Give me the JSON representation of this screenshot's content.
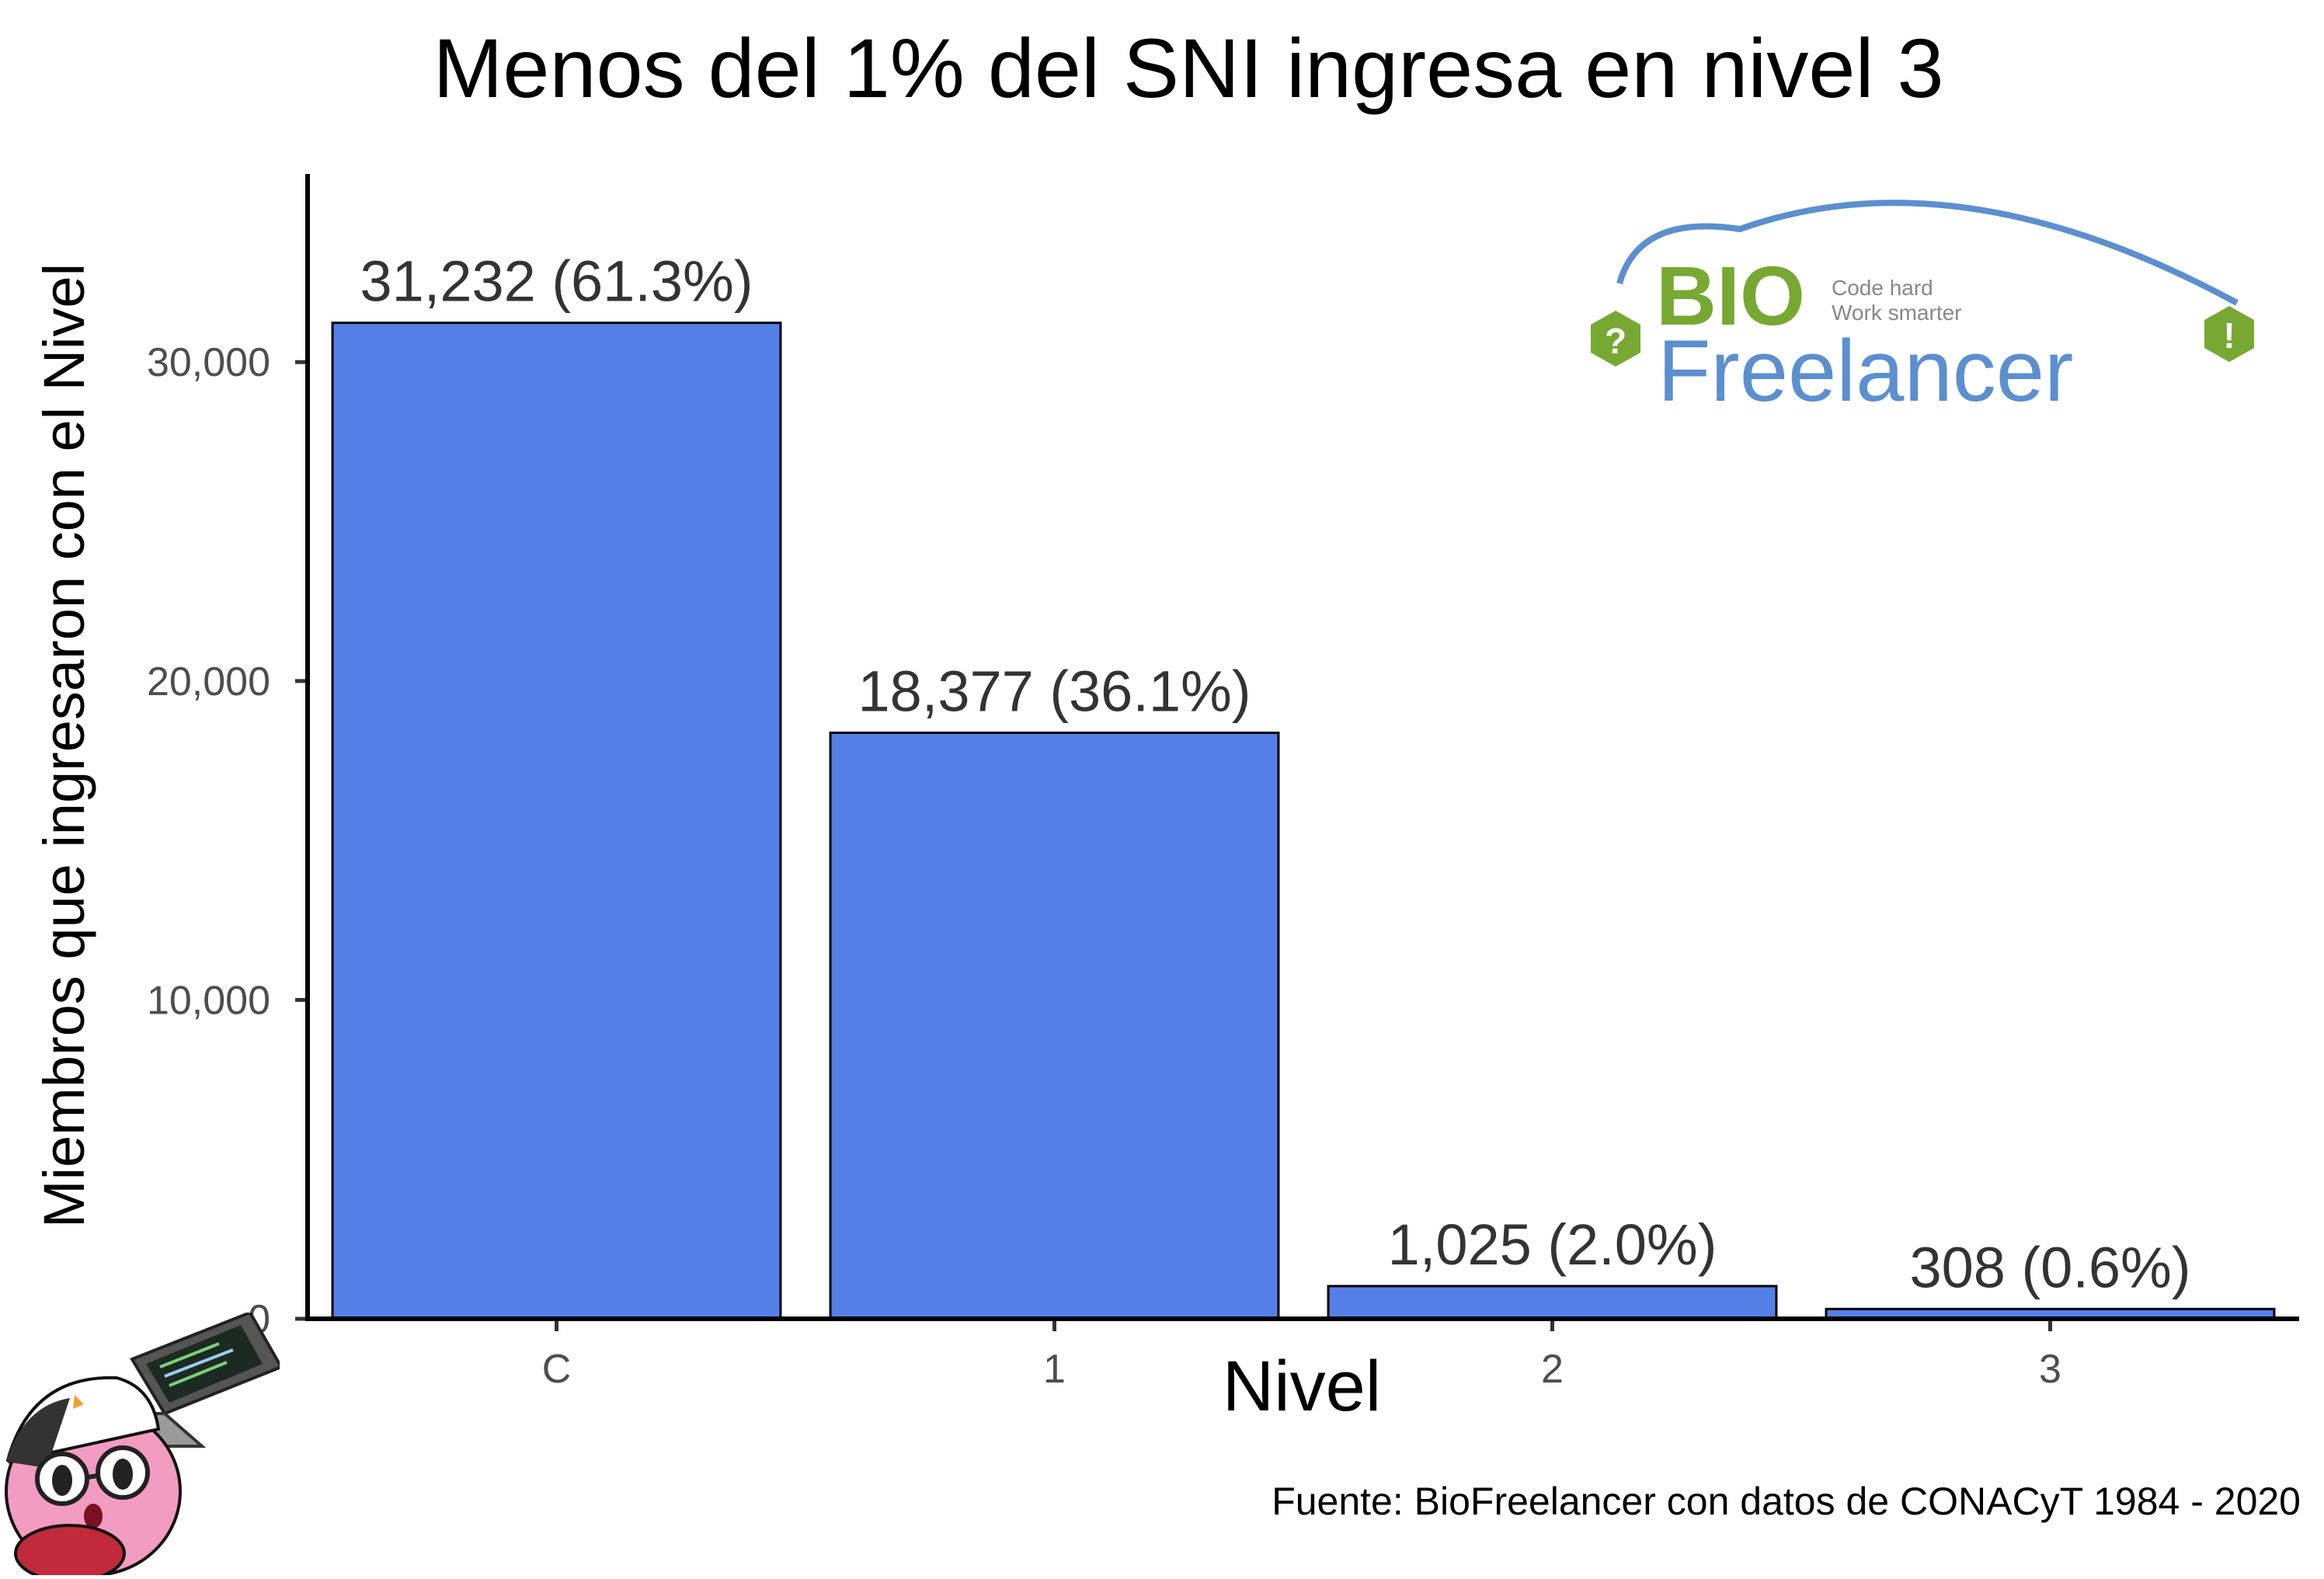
{
  "chart_data": {
    "type": "bar",
    "title": "Menos del 1% del SNI ingresa en nivel 3",
    "xlabel": "Nivel",
    "ylabel": "Miembros que ingresaron con el Nivel",
    "categories": [
      "C",
      "1",
      "2",
      "3"
    ],
    "values": [
      31232,
      18377,
      1025,
      308
    ],
    "data_labels": [
      "31,232 (61.3%)",
      "18,377 (36.1%)",
      "1,025 (2.0%)",
      "308 (0.6%)"
    ],
    "yticks": [
      0,
      10000,
      20000,
      30000
    ],
    "ytick_labels": [
      "0",
      "10,000",
      "20,000",
      "30,000"
    ],
    "ylim": [
      0,
      35900
    ],
    "grid": false,
    "bar_color": "#5580e8",
    "caption": "Fuente: BioFreelancer con datos de CONACyT 1984 - 2020"
  },
  "logo": {
    "bio": "BIO",
    "freelancer": "Freelancer",
    "tagline_1": "Code hard",
    "tagline_2": "Work smarter",
    "left_badge": "?",
    "right_badge": "!",
    "green": "#77a832",
    "blue": "#5b8fcf"
  },
  "mascot": {
    "icon": "kirby-with-laptop-icon"
  }
}
